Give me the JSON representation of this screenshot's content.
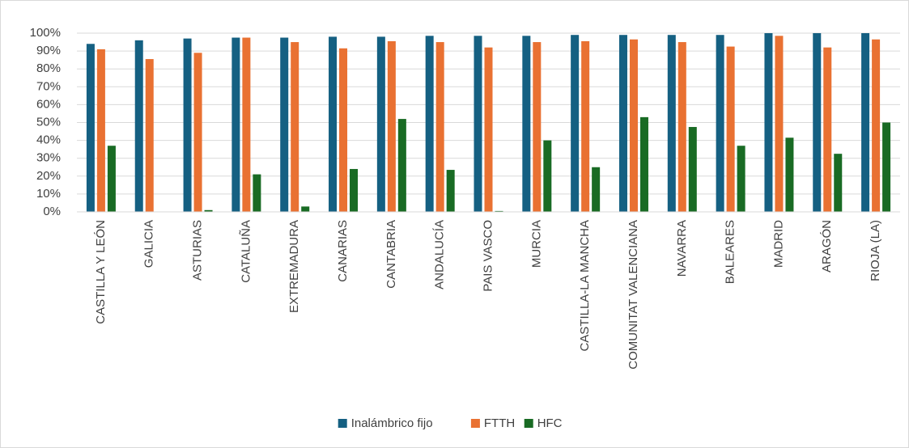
{
  "chart_data": {
    "type": "bar",
    "categories": [
      "CASTILLA Y LEÓN",
      "GALICIA",
      "ASTURIAS",
      "CATALUÑA",
      "EXTREMADURA",
      "CANARIAS",
      "CANTABRIA",
      "ANDALUCÍA",
      "PAIS VASCO",
      "MURCIA",
      "CASTILLA-LA MANCHA",
      "COMUNITAT VALENCIANA",
      "NAVARRA",
      "BALEARES",
      "MADRID",
      "ARAGÓN",
      "RIOJA (LA)"
    ],
    "series": [
      {
        "name": "Inalámbrico fijo",
        "color": "#156082",
        "values": [
          94,
          96,
          97,
          97.5,
          97.5,
          98,
          98,
          98.5,
          98.5,
          98.5,
          99,
          99,
          99,
          99,
          100,
          100,
          100
        ]
      },
      {
        "name": "FTTH",
        "color": "#e97132",
        "values": [
          91,
          85.5,
          89,
          97.5,
          95,
          91.5,
          95.5,
          95,
          92,
          95,
          95.5,
          96.5,
          95,
          92.5,
          98.5,
          92,
          96.5
        ]
      },
      {
        "name": "HFC",
        "color": "#196b24",
        "values": [
          37,
          0,
          1,
          21,
          3,
          24,
          52,
          23.5,
          0.5,
          40,
          25,
          53,
          47.5,
          37,
          41.5,
          32.5,
          50
        ]
      }
    ],
    "ylim": [
      0,
      100
    ],
    "yticks": [
      {
        "value": 0,
        "label": "0%"
      },
      {
        "value": 10,
        "label": "10%"
      },
      {
        "value": 20,
        "label": "20%"
      },
      {
        "value": 30,
        "label": "30%"
      },
      {
        "value": 40,
        "label": "40%"
      },
      {
        "value": 50,
        "label": "50%"
      },
      {
        "value": 60,
        "label": "60%"
      },
      {
        "value": 70,
        "label": "70%"
      },
      {
        "value": 80,
        "label": "80%"
      },
      {
        "value": 90,
        "label": "90%"
      },
      {
        "value": 100,
        "label": "100%"
      }
    ],
    "grid": true,
    "legend": "bottom"
  }
}
